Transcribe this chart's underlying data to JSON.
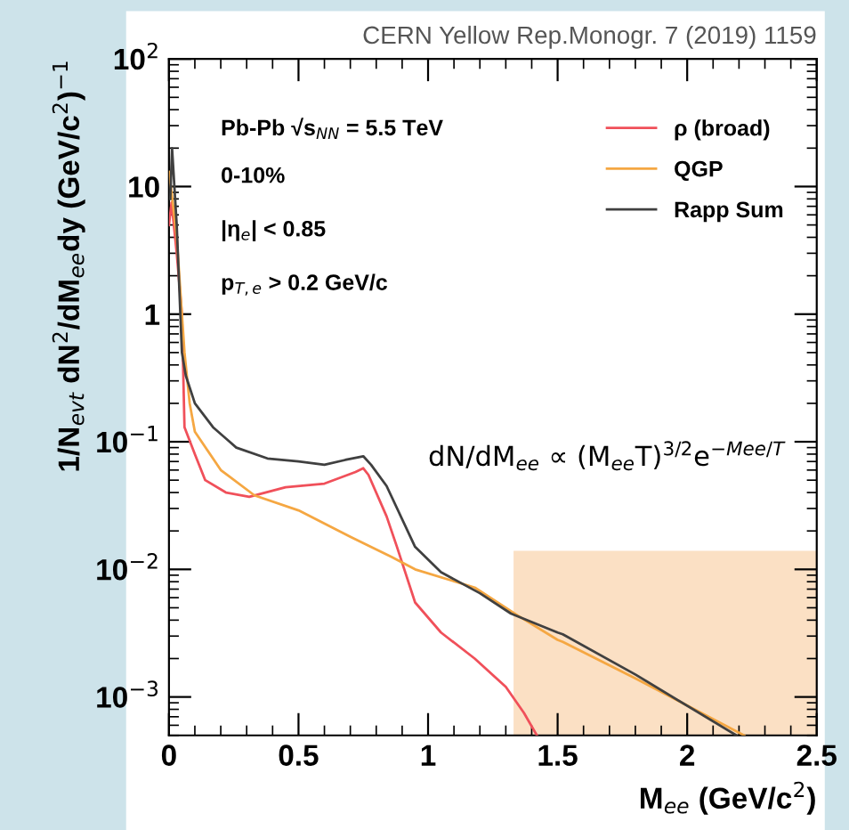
{
  "chart_data": {
    "type": "line",
    "xlabel": "M$_{ee}$ (GeV/c$^{2}$)",
    "ylabel": "1/N$_{evt}$ dN$^{2}$/dM$_{ee}$dy (GeV/c$^{2}$)$^{−1}$",
    "annotations": [
      "CERN Yellow Rep.Monogr. 7 (2019) 1159",
      "Pb-Pb √s$_{NN}$ = 5.5 TeV",
      "0-10%",
      "|η$_{e}$| < 0.85",
      "p$_{T,e}$ > 0.2 GeV/c",
      "dN/dM$_{ee}$ ∝ (M$_{ee}$T)$^{3/2}$e$^{−Mee/T}$"
    ],
    "series": [
      {
        "name": "ρ (broad)",
        "color": "#f0505a",
        "x": [
          0.0,
          0.01,
          0.03,
          0.05,
          0.06,
          0.1,
          0.14,
          0.22,
          0.31,
          0.45,
          0.6,
          0.72,
          0.75,
          0.77,
          0.84,
          0.88,
          0.95,
          1.05,
          1.18,
          1.3,
          1.37,
          1.42
        ],
        "values": [
          5,
          7.5,
          3,
          1,
          0.13,
          0.08,
          0.05,
          0.04,
          0.037,
          0.044,
          0.047,
          0.058,
          0.062,
          0.055,
          0.026,
          0.015,
          0.0055,
          0.0032,
          0.002,
          0.0012,
          0.00075,
          0.0005
        ]
      },
      {
        "name": "QGP",
        "color": "#f5a742",
        "x": [
          0.0,
          0.01,
          0.03,
          0.06,
          0.08,
          0.1,
          0.2,
          0.33,
          0.5,
          0.7,
          0.86,
          0.95,
          1.18,
          1.35,
          1.5,
          1.52,
          1.8,
          2.22
        ],
        "values": [
          13,
          9,
          4,
          0.5,
          0.2,
          0.12,
          0.06,
          0.038,
          0.029,
          0.018,
          0.0125,
          0.01,
          0.0072,
          0.0043,
          0.0028,
          0.0027,
          0.0014,
          0.0005
        ]
      },
      {
        "name": "Rapp Sum",
        "color": "#404040",
        "x": [
          0.005,
          0.012,
          0.03,
          0.05,
          0.065,
          0.1,
          0.17,
          0.26,
          0.38,
          0.5,
          0.6,
          0.68,
          0.75,
          0.78,
          0.84,
          0.95,
          1.05,
          1.2,
          1.32,
          1.5,
          1.52,
          1.8,
          2.19
        ],
        "values": [
          8,
          20,
          5,
          0.5,
          0.33,
          0.2,
          0.13,
          0.09,
          0.074,
          0.07,
          0.066,
          0.072,
          0.077,
          0.066,
          0.045,
          0.015,
          0.0095,
          0.0065,
          0.0045,
          0.0032,
          0.0031,
          0.0015,
          0.0005
        ]
      },
      {
        "type": "area",
        "color": "#fbe0c4",
        "x": [
          1.33,
          2.5
        ],
        "values": [
          0.014,
          0.014
        ]
      }
    ],
    "xlim": [
      0,
      2.5
    ],
    "ylim": [
      0.0005,
      100
    ],
    "xticks": [
      0,
      0.5,
      1,
      1.5,
      2,
      2.5
    ],
    "yticks": [
      {
        "value": 0.001,
        "label": "10$^{−3}$"
      },
      {
        "value": 0.01,
        "label": "10$^{−2}$"
      },
      {
        "value": 0.1,
        "label": "10$^{−1}$"
      },
      1,
      10,
      {
        "value": 100,
        "label": "10$^{2}$"
      }
    ],
    "log": "y",
    "grid": false,
    "legend": "top right"
  }
}
